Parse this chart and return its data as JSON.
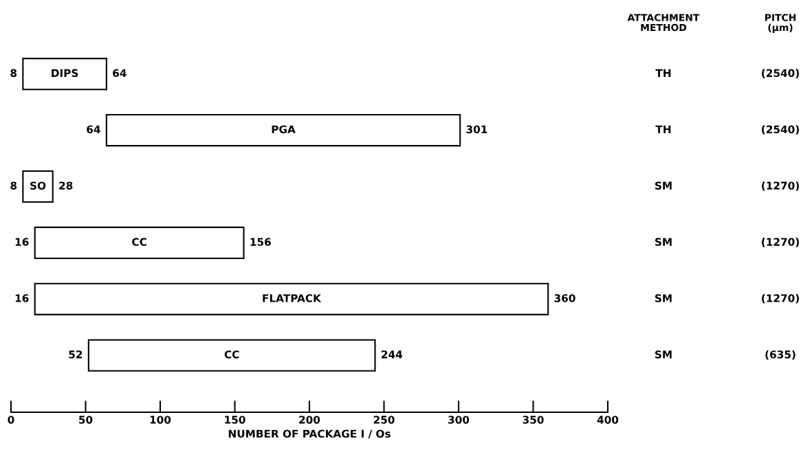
{
  "chart_data": {
    "type": "bar",
    "orientation": "horizontal",
    "xlabel": "NUMBER OF PACKAGE I / Os",
    "categories": [
      "DIPS",
      "PGA",
      "SO",
      "CC",
      "FLATPACK",
      "CC"
    ],
    "base": [
      8,
      64,
      8,
      16,
      16,
      52
    ],
    "values": [
      56,
      237,
      20,
      140,
      344,
      192
    ],
    "color": "#ffffff",
    "xlim": [
      0,
      400
    ],
    "xticks": [
      0,
      50,
      100,
      150,
      200,
      250,
      300,
      350,
      400
    ],
    "tick_labels": "x",
    "grid": false,
    "legend": false,
    "annotations": [
      "ATTACHMENT\nMETHOD",
      "PITCH\n(μm)",
      "TH",
      "(2540)",
      "TH",
      "(2540)",
      "SM",
      "(1270)",
      "SM",
      "(1270)",
      "SM",
      "(1270)",
      "SM",
      "(635)",
      {
        "text": "8",
        "x": 8,
        "y": "DIPS"
      },
      {
        "text": "64",
        "x": 64,
        "y": "DIPS"
      },
      {
        "text": "64",
        "x": 64,
        "y": "PGA"
      },
      {
        "text": "301",
        "x": 301,
        "y": "PGA"
      },
      {
        "text": "8",
        "x": 8,
        "y": "SO"
      },
      {
        "text": "28",
        "x": 28,
        "y": "SO"
      },
      {
        "text": "16",
        "x": 16,
        "y": "CC"
      },
      {
        "text": "156",
        "x": 156,
        "y": "CC"
      },
      {
        "text": "16",
        "x": 16,
        "y": "FLATPACK"
      },
      {
        "text": "360",
        "x": 360,
        "y": "FLATPACK"
      },
      "52",
      "244"
    ]
  }
}
